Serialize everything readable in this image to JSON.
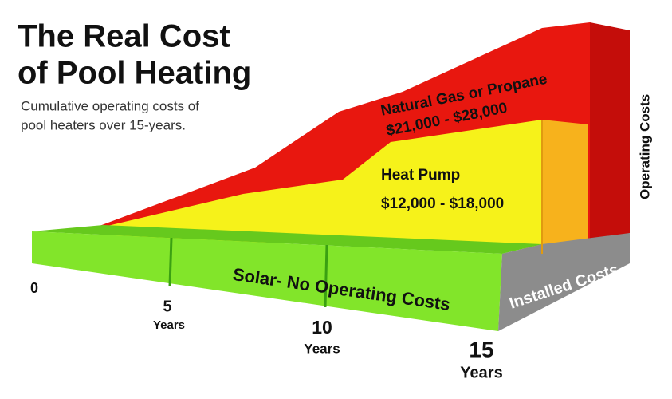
{
  "header": {
    "title": [
      "The Real Cost",
      "of Pool Heating"
    ],
    "subtitle": [
      "Cumulative operating costs of",
      "pool heaters over 15-years."
    ]
  },
  "bands": {
    "gas": {
      "label": "Natural Gas or Propane",
      "range": "$21,000 - $28,000"
    },
    "heat_pump": {
      "label": "Heat Pump",
      "range": "$12,000 - $18,000"
    },
    "solar": {
      "label": "Solar- No Operating Costs"
    }
  },
  "side_labels": {
    "installed": "Installed Costs",
    "operating": "Operating Costs"
  },
  "axis": [
    {
      "number": "0"
    },
    {
      "number": "5",
      "unit": "Years"
    },
    {
      "number": "10",
      "unit": "Years"
    },
    {
      "number": "15",
      "unit": "Years"
    }
  ]
}
